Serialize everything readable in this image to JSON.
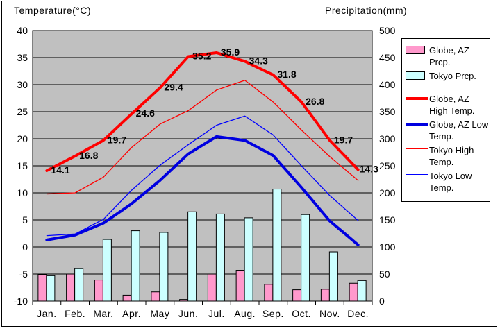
{
  "titles": {
    "left": "Temperature(°C)",
    "right": "Precipitation(mm)"
  },
  "chart_data": {
    "type": "bar+line combo",
    "categories": [
      "Jan.",
      "Feb.",
      "Mar.",
      "Apr.",
      "May",
      "Jun.",
      "Jul.",
      "Aug.",
      "Sep.",
      "Oct.",
      "Nov.",
      "Dec."
    ],
    "temp_axis": {
      "side": "left",
      "min": -10,
      "max": 40,
      "step": 5,
      "title": "Temperature(°C)"
    },
    "precip_axis": {
      "side": "right",
      "min": 0,
      "max": 500,
      "step": 50,
      "title": "Precipitation(mm)"
    },
    "plot_background": "#C0C0C0",
    "grid": {
      "on": true,
      "color": "#000000"
    },
    "legend_position": "right",
    "series": [
      {
        "key": "globe-az-prcp",
        "name": "Globe, AZ Prcp.",
        "type": "bar",
        "axis": "precip",
        "color": "#FF99CC",
        "values": [
          49,
          50,
          39,
          11,
          17,
          3,
          50,
          57,
          31,
          21,
          22,
          33
        ]
      },
      {
        "key": "tokyo-prcp",
        "name": "Tokyo Prcp.",
        "type": "bar",
        "axis": "precip",
        "color": "#CCFFFF",
        "values": [
          47,
          60,
          114,
          130,
          127,
          165,
          161,
          154,
          207,
          160,
          91,
          38
        ]
      },
      {
        "key": "globe-az-high-temp",
        "name": "Globe, AZ High Temp.",
        "type": "line",
        "axis": "temp",
        "color": "#FF0000",
        "width": 4,
        "values": [
          14.1,
          16.8,
          19.7,
          24.6,
          29.4,
          35.2,
          35.9,
          34.3,
          31.8,
          26.8,
          19.7,
          14.3
        ],
        "point_labels": [
          "14.1",
          "16.8",
          "19.7",
          "24.6",
          "29.4",
          "35.2",
          "35.9",
          "34.3",
          "31.8",
          "26.8",
          "19.7",
          "14.3"
        ]
      },
      {
        "key": "globe-az-low-temp",
        "name": "Globe, AZ Low Temp.",
        "type": "line",
        "axis": "temp",
        "color": "#0000E0",
        "width": 4,
        "values": [
          1.3,
          2.2,
          4.4,
          8.0,
          12.3,
          17.2,
          20.4,
          19.7,
          16.9,
          11.0,
          4.8,
          0.4
        ]
      },
      {
        "key": "tokyo-high-temp",
        "name": "Tokyo High Temp.",
        "type": "line",
        "axis": "temp",
        "color": "#FF0000",
        "width": 1.3,
        "values": [
          9.8,
          10.0,
          12.9,
          18.4,
          22.7,
          25.2,
          29.0,
          30.8,
          26.8,
          21.6,
          16.7,
          12.3
        ]
      },
      {
        "key": "tokyo-low-temp",
        "name": "Tokyo Low Temp.",
        "type": "line",
        "axis": "temp",
        "color": "#0000FF",
        "width": 1.3,
        "values": [
          2.1,
          2.4,
          5.1,
          10.5,
          15.1,
          18.9,
          22.5,
          24.2,
          20.7,
          15.0,
          9.5,
          4.9
        ]
      }
    ]
  },
  "legend": {
    "items": [
      {
        "key": "globe-az-prcp",
        "swatch": "bar",
        "color": "#FF99CC",
        "line1": "Globe, AZ",
        "line2": "Prcp."
      },
      {
        "key": "tokyo-prcp",
        "swatch": "bar",
        "color": "#CCFFFF",
        "line1": "Tokyo Prcp.",
        "line2": ""
      },
      {
        "key": "globe-az-high-temp",
        "swatch": "line-thick",
        "color": "#FF0000",
        "line1": "Globe, AZ",
        "line2": "High Temp."
      },
      {
        "key": "globe-az-low-temp",
        "swatch": "line-thick",
        "color": "#0000E0",
        "line1": "Globe, AZ Low",
        "line2": "Temp."
      },
      {
        "key": "tokyo-high-temp",
        "swatch": "line-thin",
        "color": "#FF0000",
        "line1": "Tokyo High",
        "line2": "Temp."
      },
      {
        "key": "tokyo-low-temp",
        "swatch": "line-thin",
        "color": "#0000FF",
        "line1": "Tokyo Low",
        "line2": "Temp."
      }
    ]
  }
}
